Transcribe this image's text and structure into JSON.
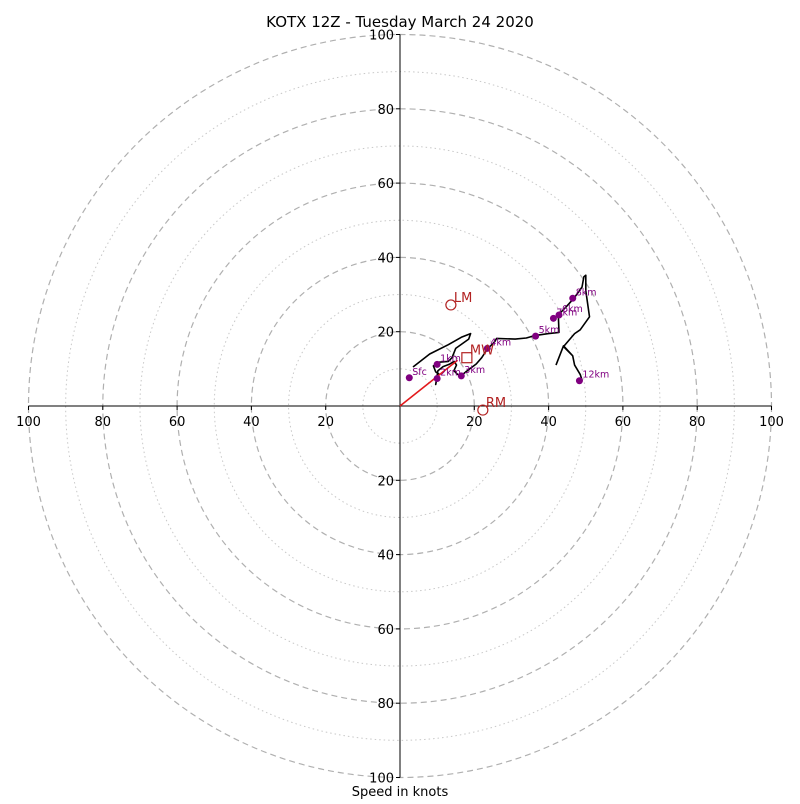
{
  "chart_data": {
    "type": "hodograph",
    "title": "KOTX 12Z - Tuesday March 24 2020",
    "xlabel": "Speed in knots",
    "units": "knots",
    "range": [
      -100,
      100
    ],
    "ring_values": [
      20,
      40,
      60,
      80,
      100
    ],
    "minor_ring_values": [
      10,
      30,
      50,
      70,
      90
    ],
    "tick_labels": [
      "100",
      "80",
      "60",
      "40",
      "20",
      "20",
      "40",
      "60",
      "80",
      "100"
    ],
    "grid": true,
    "colors": {
      "trace": "#000000",
      "height_markers": "#800080",
      "motion": "#b22222",
      "vector": "#e31a1c",
      "grid": "#b0b0b0"
    },
    "hodograph_trace": [
      [
        3.5,
        10.5
      ],
      [
        8,
        14
      ],
      [
        13,
        16.5
      ],
      [
        16.5,
        18.5
      ],
      [
        19,
        19.5
      ],
      [
        18.5,
        18
      ],
      [
        15,
        15.5
      ],
      [
        14,
        13
      ],
      [
        13,
        12
      ],
      [
        10.5,
        11.8
      ],
      [
        9,
        10.8
      ],
      [
        9.6,
        9.2
      ],
      [
        10.5,
        8.6
      ],
      [
        10,
        7.8
      ],
      [
        9.6,
        5.8
      ],
      [
        10.2,
        9.5
      ],
      [
        11.6,
        10.6
      ],
      [
        13.2,
        11.2
      ],
      [
        14.6,
        12
      ],
      [
        15.2,
        11
      ],
      [
        14.5,
        9.5
      ],
      [
        15.5,
        8.5
      ],
      [
        16.5,
        8.2
      ],
      [
        18.5,
        9.8
      ],
      [
        20.5,
        11.3
      ],
      [
        22,
        13
      ],
      [
        23.5,
        15.3
      ],
      [
        25.5,
        17.3
      ],
      [
        26,
        18.2
      ],
      [
        31,
        18
      ],
      [
        34,
        18.3
      ],
      [
        36.5,
        19
      ],
      [
        40,
        19.5
      ],
      [
        42.8,
        19.8
      ],
      [
        42.6,
        24.5
      ],
      [
        45,
        27
      ],
      [
        46.8,
        29
      ],
      [
        49,
        32
      ],
      [
        49.5,
        34.8
      ],
      [
        50,
        35.2
      ],
      [
        50,
        31
      ],
      [
        51,
        24
      ],
      [
        48.5,
        20.5
      ],
      [
        47,
        19.5
      ],
      [
        44,
        16
      ],
      [
        46.5,
        13.5
      ],
      [
        47,
        11
      ],
      [
        48.5,
        8.5
      ],
      [
        49,
        7
      ],
      [
        48.5,
        8.5
      ],
      [
        47,
        11
      ],
      [
        46.5,
        13.5
      ],
      [
        44,
        16.2
      ],
      [
        42,
        11
      ]
    ],
    "height_markers": [
      {
        "label": "Sfc",
        "u": 2.5,
        "v": 7.6
      },
      {
        "label": "1km",
        "u": 10,
        "v": 11.2
      },
      {
        "label": "2km",
        "u": 10,
        "v": 7.4
      },
      {
        "label": "3km",
        "u": 16.5,
        "v": 8.1
      },
      {
        "label": "4km",
        "u": 23.5,
        "v": 15.5
      },
      {
        "label": "5km",
        "u": 36.5,
        "v": 18.8
      },
      {
        "label": "6km",
        "u": 42.8,
        "v": 24.5
      },
      {
        "label": "7km",
        "u": 41.3,
        "v": 23.6
      },
      {
        "label": "8km",
        "u": 46.5,
        "v": 29
      },
      {
        "label": "12km",
        "u": 48.3,
        "v": 6.8
      }
    ],
    "storm_motion": [
      {
        "label": "LM",
        "u": 13.7,
        "v": 27.2,
        "marker": "circle"
      },
      {
        "label": "RM",
        "u": 22.3,
        "v": -1.1,
        "marker": "circle"
      },
      {
        "label": "MW",
        "u": 18,
        "v": 13,
        "marker": "square"
      }
    ],
    "storm_vector": {
      "from": [
        0,
        0
      ],
      "to": [
        15.5,
        12.3
      ]
    }
  }
}
